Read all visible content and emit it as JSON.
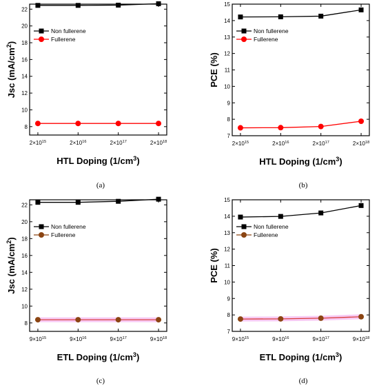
{
  "chart_data": [
    {
      "type": "line",
      "panel": "(a)",
      "x": [
        "2×10^15",
        "2×10^16",
        "2×10^17",
        "2×10^18"
      ],
      "xlabel": "HTL Doping (1/cm^3)",
      "ylabel": "Jsc (mA/cm^2)",
      "ylim": [
        7,
        22.6
      ],
      "yticks": [
        8,
        10,
        12,
        14,
        16,
        18,
        20,
        22
      ],
      "legend_position": "top-left",
      "grid": false,
      "series": [
        {
          "name": "Non fullerene",
          "values": [
            22.45,
            22.45,
            22.48,
            22.65
          ],
          "color": "#000000",
          "marker": "square"
        },
        {
          "name": "Fullerene",
          "values": [
            8.38,
            8.38,
            8.38,
            8.38
          ],
          "color": "#ff0000",
          "marker": "circle"
        }
      ]
    },
    {
      "type": "line",
      "panel": "(b)",
      "x": [
        "2×10^15",
        "2×10^16",
        "2×10^17",
        "2×10^18"
      ],
      "xlabel": "HTL Doping (1/cm^3)",
      "ylabel": "PCE (%)",
      "ylim": [
        7,
        15
      ],
      "yticks": [
        7,
        8,
        9,
        10,
        11,
        12,
        13,
        14,
        15
      ],
      "legend_position": "top-left",
      "grid": false,
      "series": [
        {
          "name": "Non fullerene",
          "values": [
            14.22,
            14.23,
            14.27,
            14.65
          ],
          "color": "#000000",
          "marker": "square"
        },
        {
          "name": "Fullerene",
          "values": [
            7.48,
            7.49,
            7.56,
            7.88
          ],
          "color": "#ff0000",
          "marker": "circle"
        }
      ]
    },
    {
      "type": "line",
      "panel": "(c)",
      "x": [
        "9×10^15",
        "9×10^16",
        "9×10^17",
        "9×10^18"
      ],
      "xlabel": "ETL Doping (1/cm^3)",
      "ylabel": "Jsc (mA/cm^2)",
      "ylim": [
        7,
        22.6
      ],
      "yticks": [
        8,
        10,
        12,
        14,
        16,
        18,
        20,
        22
      ],
      "legend_position": "top-left",
      "grid": false,
      "series": [
        {
          "name": "Non fullerene",
          "values": [
            22.3,
            22.3,
            22.42,
            22.67
          ],
          "color": "#000000",
          "marker": "square"
        },
        {
          "name": "Fullerene",
          "values": [
            8.38,
            8.38,
            8.38,
            8.38
          ],
          "color": "#8b4513",
          "marker": "circle"
        }
      ]
    },
    {
      "type": "line",
      "panel": "(d)",
      "x": [
        "9×10^15",
        "9×10^16",
        "9×10^17",
        "9×10^18"
      ],
      "xlabel": "ETL Doping (1/cm^3)",
      "ylabel": "PCE (%)",
      "ylim": [
        7,
        15
      ],
      "yticks": [
        7,
        8,
        9,
        10,
        11,
        12,
        13,
        14,
        15
      ],
      "legend_position": "top-left",
      "grid": false,
      "series": [
        {
          "name": "Non fullerene",
          "values": [
            13.95,
            13.99,
            14.2,
            14.65
          ],
          "color": "#000000",
          "marker": "square"
        },
        {
          "name": "Fullerene",
          "values": [
            7.75,
            7.76,
            7.8,
            7.89
          ],
          "color": "#8b4513",
          "marker": "circle"
        }
      ]
    }
  ]
}
